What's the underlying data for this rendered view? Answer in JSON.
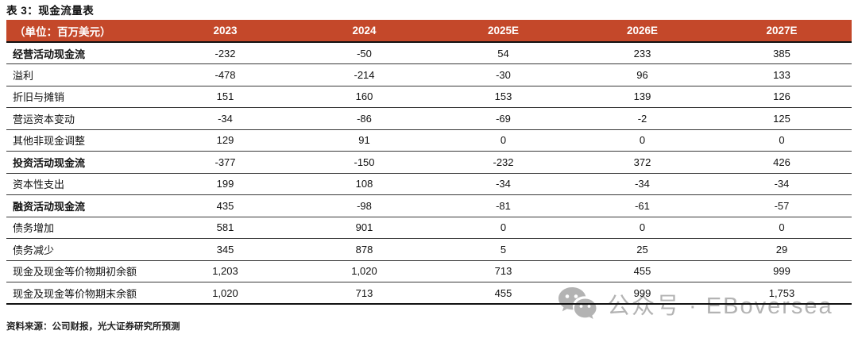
{
  "title": "表 3：现金流量表",
  "table": {
    "unit_label": "（单位：百万美元）",
    "columns": [
      "2023",
      "2024",
      "2025E",
      "2026E",
      "2027E"
    ],
    "rows": [
      {
        "label": "经营活动现金流",
        "bold": true,
        "values": [
          "-232",
          "-50",
          "54",
          "233",
          "385"
        ]
      },
      {
        "label": "溢利",
        "bold": false,
        "values": [
          "-478",
          "-214",
          "-30",
          "96",
          "133"
        ]
      },
      {
        "label": "折旧与摊销",
        "bold": false,
        "values": [
          "151",
          "160",
          "153",
          "139",
          "126"
        ]
      },
      {
        "label": "营运资本变动",
        "bold": false,
        "values": [
          "-34",
          "-86",
          "-69",
          "-2",
          "125"
        ]
      },
      {
        "label": "其他非现金调整",
        "bold": false,
        "values": [
          "129",
          "91",
          "0",
          "0",
          "0"
        ]
      },
      {
        "label": "投资活动现金流",
        "bold": true,
        "values": [
          "-377",
          "-150",
          "-232",
          "372",
          "426"
        ]
      },
      {
        "label": "资本性支出",
        "bold": false,
        "values": [
          "199",
          "108",
          "-34",
          "-34",
          "-34"
        ]
      },
      {
        "label": "融资活动现金流",
        "bold": true,
        "values": [
          "435",
          "-98",
          "-81",
          "-61",
          "-57"
        ]
      },
      {
        "label": "债务增加",
        "bold": false,
        "values": [
          "581",
          "901",
          "0",
          "0",
          "0"
        ]
      },
      {
        "label": "债务减少",
        "bold": false,
        "values": [
          "345",
          "878",
          "5",
          "25",
          "29"
        ]
      },
      {
        "label": "现金及现金等价物期初余额",
        "bold": false,
        "values": [
          "1,203",
          "1,020",
          "713",
          "455",
          "999"
        ]
      },
      {
        "label": "现金及现金等价物期末余额",
        "bold": false,
        "values": [
          "1,020",
          "713",
          "455",
          "999",
          "1,753"
        ]
      }
    ]
  },
  "footer": {
    "source": "资料来源：公司财报，光大证券研究所预测"
  },
  "watermark": {
    "icon": "wechat-icon",
    "text": "公众号 · EBoversea"
  },
  "colors": {
    "header_bg": "#C4482A",
    "header_text": "#FFFFFF",
    "row_border": "#383838",
    "watermark_gray": "#9E9E9E"
  },
  "chart_data": {
    "type": "table",
    "title": "表 3：现金流量表",
    "unit": "百万美元",
    "columns": [
      "2023",
      "2024",
      "2025E",
      "2026E",
      "2027E"
    ],
    "rows": [
      {
        "label": "经营活动现金流",
        "values": [
          -232,
          -50,
          54,
          233,
          385
        ]
      },
      {
        "label": "溢利",
        "values": [
          -478,
          -214,
          -30,
          96,
          133
        ]
      },
      {
        "label": "折旧与摊销",
        "values": [
          151,
          160,
          153,
          139,
          126
        ]
      },
      {
        "label": "营运资本变动",
        "values": [
          -34,
          -86,
          -69,
          -2,
          125
        ]
      },
      {
        "label": "其他非现金调整",
        "values": [
          129,
          91,
          0,
          0,
          0
        ]
      },
      {
        "label": "投资活动现金流",
        "values": [
          -377,
          -150,
          -232,
          372,
          426
        ]
      },
      {
        "label": "资本性支出",
        "values": [
          199,
          108,
          -34,
          -34,
          -34
        ]
      },
      {
        "label": "融资活动现金流",
        "values": [
          435,
          -98,
          -81,
          -61,
          -57
        ]
      },
      {
        "label": "债务增加",
        "values": [
          581,
          901,
          0,
          0,
          0
        ]
      },
      {
        "label": "债务减少",
        "values": [
          345,
          878,
          5,
          25,
          29
        ]
      },
      {
        "label": "现金及现金等价物期初余额",
        "values": [
          1203,
          1020,
          713,
          455,
          999
        ]
      },
      {
        "label": "现金及现金等价物期末余额",
        "values": [
          1020,
          713,
          455,
          999,
          1753
        ]
      }
    ]
  }
}
